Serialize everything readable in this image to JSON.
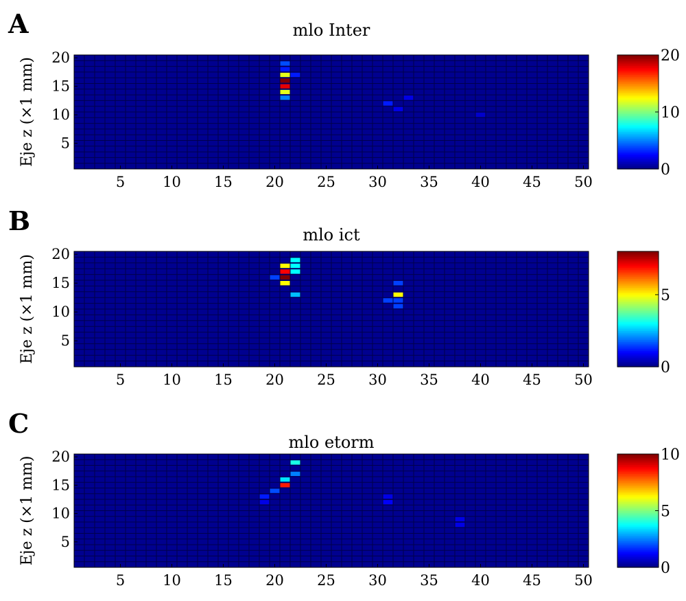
{
  "colors": {
    "colormap": "jet",
    "background": "#00008f",
    "grid": "#000014"
  },
  "chart_data": [
    {
      "type": "heatmap",
      "panel_label": "A",
      "title": "mlo Inter",
      "ylabel": "Eje z (×1 mm)",
      "xlabel": "",
      "x_ticks": [
        "5",
        "10",
        "15",
        "20",
        "25",
        "30",
        "35",
        "40",
        "45",
        "50"
      ],
      "y_ticks": [
        "5",
        "10",
        "15",
        "20"
      ],
      "xlim": [
        0.5,
        50.5
      ],
      "ylim": [
        0.5,
        20.5
      ],
      "colorbar": {
        "min": 0,
        "max": 20,
        "ticks": [
          "0",
          "10",
          "20"
        ]
      },
      "cells": [
        {
          "x": 21,
          "y": 19,
          "v": 4
        },
        {
          "x": 21,
          "y": 18,
          "v": 3
        },
        {
          "x": 21,
          "y": 17,
          "v": 12
        },
        {
          "x": 21,
          "y": 16,
          "v": 20
        },
        {
          "x": 21,
          "y": 15,
          "v": 18
        },
        {
          "x": 21,
          "y": 14,
          "v": 12
        },
        {
          "x": 21,
          "y": 13,
          "v": 5
        },
        {
          "x": 22,
          "y": 17,
          "v": 3
        },
        {
          "x": 31,
          "y": 12,
          "v": 3
        },
        {
          "x": 32,
          "y": 11,
          "v": 2
        },
        {
          "x": 33,
          "y": 13,
          "v": 2
        },
        {
          "x": 40,
          "y": 10,
          "v": 1.5
        }
      ]
    },
    {
      "type": "heatmap",
      "panel_label": "B",
      "title": "mlo ict",
      "ylabel": "Eje z (×1 mm)",
      "xlabel": "",
      "x_ticks": [
        "5",
        "10",
        "15",
        "20",
        "25",
        "30",
        "35",
        "40",
        "45",
        "50"
      ],
      "y_ticks": [
        "5",
        "10",
        "15",
        "20"
      ],
      "xlim": [
        0.5,
        50.5
      ],
      "ylim": [
        0.5,
        20.5
      ],
      "colorbar": {
        "min": 0,
        "max": 8,
        "ticks": [
          "0",
          "5"
        ]
      },
      "cells": [
        {
          "x": 21,
          "y": 18,
          "v": 5
        },
        {
          "x": 21,
          "y": 17,
          "v": 7
        },
        {
          "x": 21,
          "y": 16,
          "v": 8
        },
        {
          "x": 21,
          "y": 15,
          "v": 5
        },
        {
          "x": 20,
          "y": 16,
          "v": 1.5
        },
        {
          "x": 22,
          "y": 19,
          "v": 3
        },
        {
          "x": 22,
          "y": 18,
          "v": 3
        },
        {
          "x": 22,
          "y": 17,
          "v": 3
        },
        {
          "x": 22,
          "y": 13,
          "v": 2.5
        },
        {
          "x": 32,
          "y": 15,
          "v": 1.5
        },
        {
          "x": 32,
          "y": 13,
          "v": 5
        },
        {
          "x": 31,
          "y": 12,
          "v": 1.5
        },
        {
          "x": 32,
          "y": 12,
          "v": 1.5
        },
        {
          "x": 32,
          "y": 11,
          "v": 1.5
        }
      ]
    },
    {
      "type": "heatmap",
      "panel_label": "C",
      "title": "mlo etorm",
      "ylabel": "Eje z (×1 mm)",
      "xlabel": "",
      "x_ticks": [
        "5",
        "10",
        "15",
        "20",
        "25",
        "30",
        "35",
        "40",
        "45",
        "50"
      ],
      "y_ticks": [
        "5",
        "10",
        "15",
        "20"
      ],
      "xlim": [
        0.5,
        50.5
      ],
      "ylim": [
        0.5,
        20.5
      ],
      "colorbar": {
        "min": 0,
        "max": 10,
        "ticks": [
          "0",
          "5",
          "10"
        ]
      },
      "cells": [
        {
          "x": 22,
          "y": 19,
          "v": 4
        },
        {
          "x": 22,
          "y": 17,
          "v": 2.5
        },
        {
          "x": 21,
          "y": 16,
          "v": 3.5
        },
        {
          "x": 21,
          "y": 15,
          "v": 8.5
        },
        {
          "x": 20,
          "y": 14,
          "v": 2
        },
        {
          "x": 19,
          "y": 13,
          "v": 1.5
        },
        {
          "x": 19,
          "y": 12,
          "v": 1
        },
        {
          "x": 31,
          "y": 12,
          "v": 1.2
        },
        {
          "x": 31,
          "y": 13,
          "v": 1
        },
        {
          "x": 38,
          "y": 9,
          "v": 1
        },
        {
          "x": 38,
          "y": 8,
          "v": 1
        }
      ]
    }
  ]
}
